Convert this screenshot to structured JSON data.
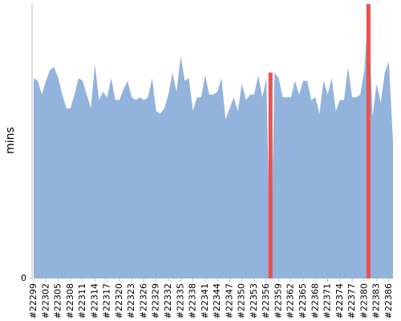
{
  "chart_data": {
    "type": "area",
    "y_label": "mins",
    "categories": [
      "#22299",
      null,
      null,
      "#22302",
      null,
      null,
      "#22305",
      null,
      null,
      "#22308",
      null,
      null,
      "#22311",
      null,
      null,
      "#22314",
      null,
      null,
      "#22317",
      null,
      null,
      "#22320",
      null,
      null,
      "#22323",
      null,
      null,
      "#22326",
      null,
      null,
      "#22329",
      null,
      null,
      "#22332",
      null,
      null,
      "#22335",
      null,
      null,
      "#22338",
      null,
      null,
      "#22341",
      null,
      null,
      "#22344",
      null,
      null,
      "#22347",
      null,
      null,
      "#22350",
      null,
      null,
      "#22353",
      null,
      null,
      "#22356",
      null,
      null,
      "#22359",
      null,
      null,
      "#22362",
      null,
      null,
      "#22365",
      null,
      null,
      "#22368",
      null,
      null,
      "#22371",
      null,
      null,
      "#22374",
      null,
      null,
      "#22377",
      null,
      null,
      "#22380",
      null,
      null,
      "#22383",
      null,
      null,
      "#22386",
      null
    ],
    "values": [
      73,
      72,
      67,
      72,
      76,
      77,
      73,
      67,
      62,
      62,
      67,
      73,
      72,
      67,
      62,
      78,
      65,
      68,
      66,
      73,
      65,
      65,
      69,
      72,
      66,
      65,
      66,
      65,
      66,
      73,
      61,
      60,
      62,
      67,
      75,
      68,
      81,
      72,
      73,
      61,
      66,
      66,
      74,
      67,
      67,
      68,
      73,
      58,
      62,
      66,
      61,
      71,
      65,
      67,
      67,
      74,
      66,
      73,
      0,
      75,
      73,
      66,
      66,
      66,
      72,
      67,
      72,
      72,
      65,
      66,
      60,
      72,
      67,
      73,
      61,
      65,
      65,
      77,
      66,
      66,
      67,
      76,
      100,
      59,
      71,
      64,
      75,
      79,
      50
    ],
    "color": "#92b3dc",
    "highlight_color": "#e8524f",
    "highlight_indices": [
      58,
      82
    ],
    "ylim": [
      0,
      100
    ],
    "yticks": [
      0
    ]
  }
}
